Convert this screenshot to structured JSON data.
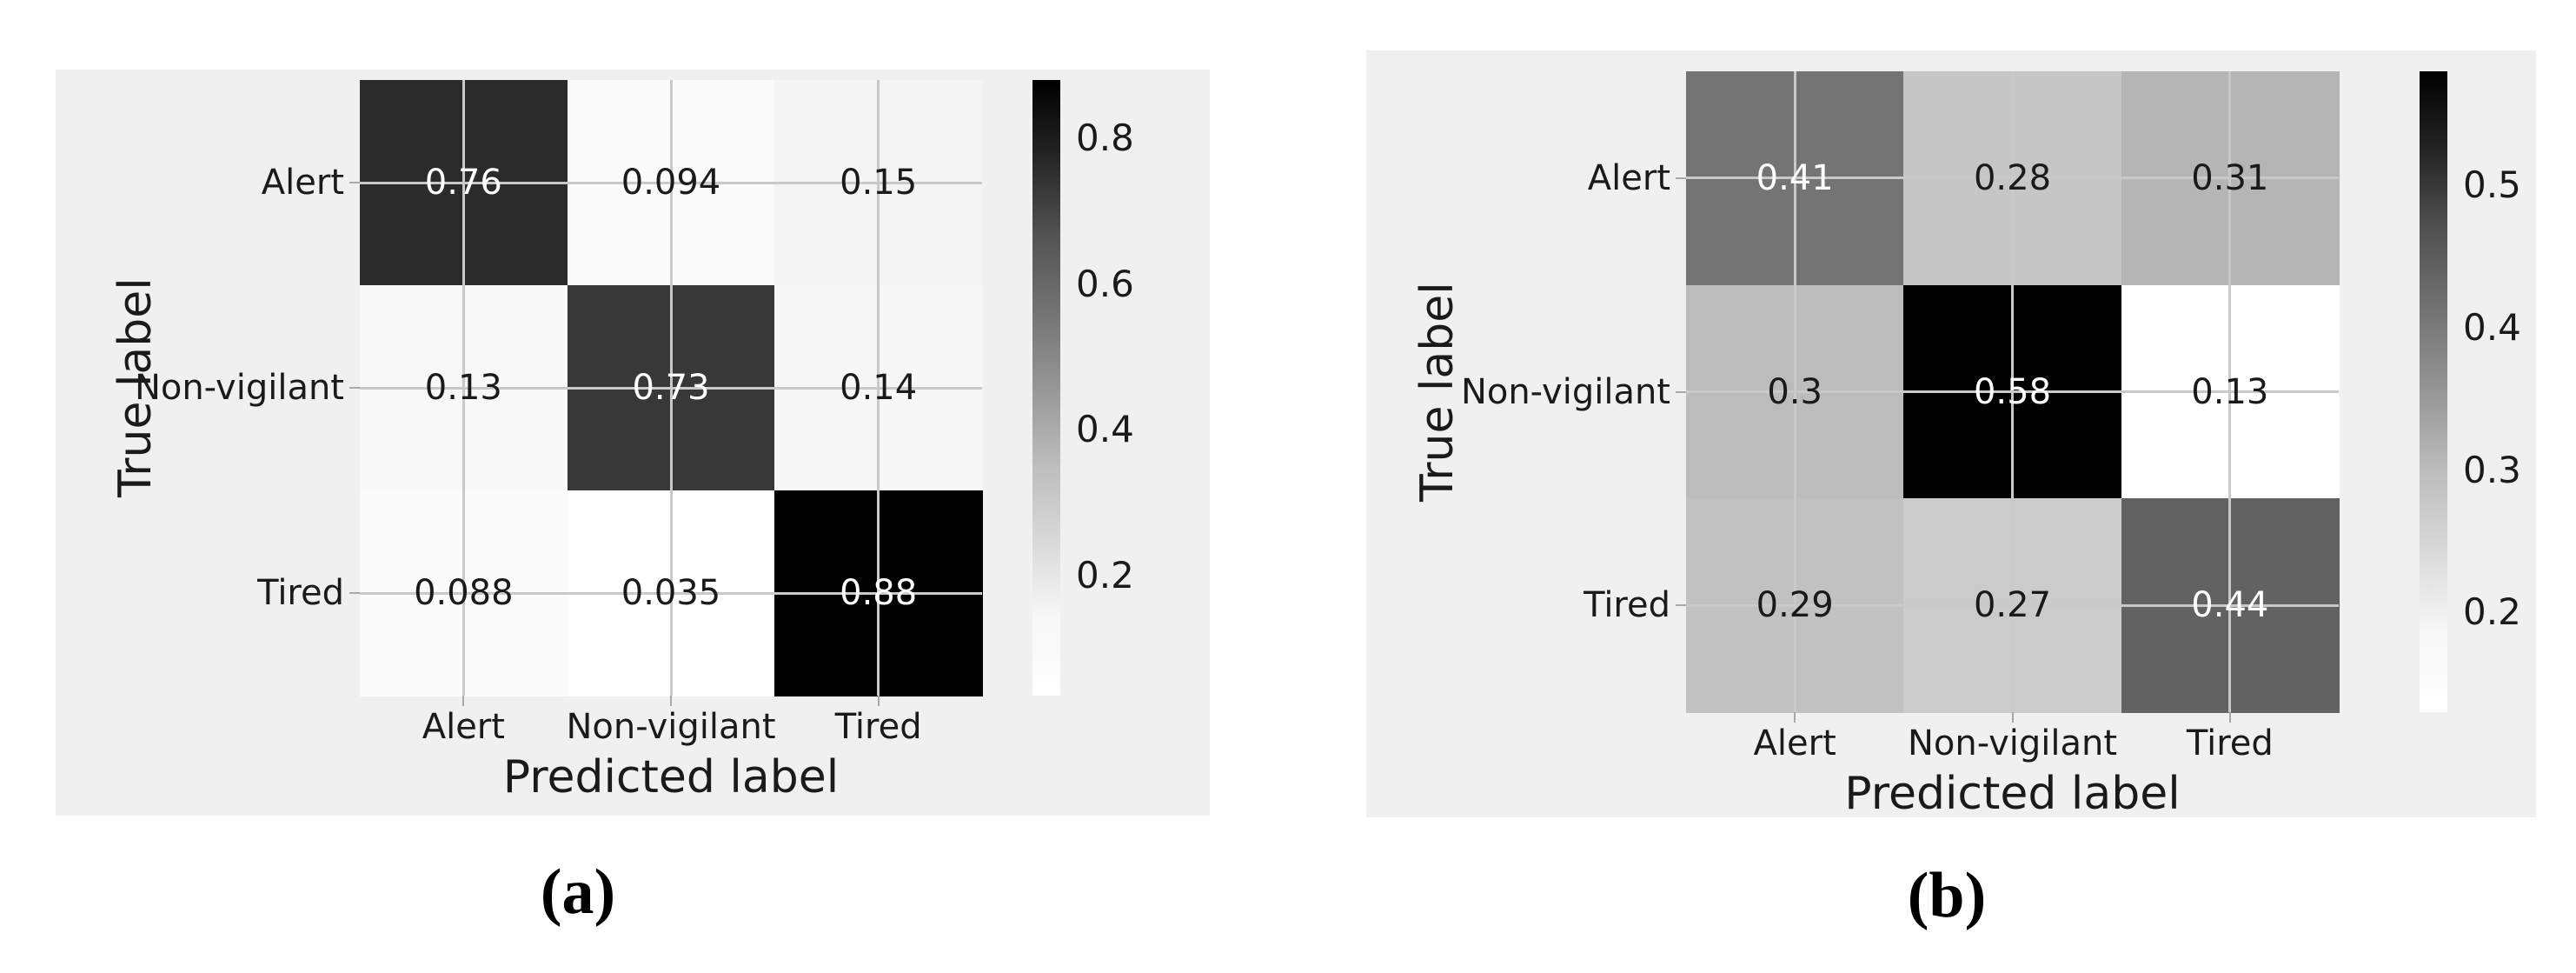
{
  "figure": {
    "description": "Two grayscale confusion matrix heatmaps",
    "panel_background": "#f0f0f0",
    "page_background": "#ffffff",
    "captions": {
      "a": "(a)",
      "b": "(b)"
    }
  },
  "chart_data": [
    {
      "id": "a",
      "type": "heatmap",
      "title": "",
      "xlabel": "Predicted label",
      "ylabel": "True label",
      "x_categories": [
        "Alert",
        "Non-vigilant",
        "Tired"
      ],
      "y_categories": [
        "Alert",
        "Non-vigilant",
        "Tired"
      ],
      "values": [
        [
          0.76,
          0.094,
          0.15
        ],
        [
          0.13,
          0.73,
          0.14
        ],
        [
          0.088,
          0.035,
          0.88
        ]
      ],
      "value_labels": [
        [
          "0.76",
          "0.094",
          "0.15"
        ],
        [
          "0.13",
          "0.73",
          "0.14"
        ],
        [
          "0.088",
          "0.035",
          "0.88"
        ]
      ],
      "vmin": 0.035,
      "vmax": 0.88,
      "colormap": "Greys",
      "grid": true,
      "legend_position": "right-colorbar",
      "colorbar_ticks": [
        "0.8",
        "0.6",
        "0.4",
        "0.2"
      ],
      "colorbar_tick_values": [
        0.8,
        0.6,
        0.4,
        0.2
      ],
      "caption": "(a)"
    },
    {
      "id": "b",
      "type": "heatmap",
      "title": "",
      "xlabel": "Predicted label",
      "ylabel": "True label",
      "x_categories": [
        "Alert",
        "Non-vigilant",
        "Tired"
      ],
      "y_categories": [
        "Alert",
        "Non-vigilant",
        "Tired"
      ],
      "values": [
        [
          0.41,
          0.28,
          0.31
        ],
        [
          0.3,
          0.58,
          0.13
        ],
        [
          0.29,
          0.27,
          0.44
        ]
      ],
      "value_labels": [
        [
          "0.41",
          "0.28",
          "0.31"
        ],
        [
          "0.3",
          "0.58",
          "0.13"
        ],
        [
          "0.29",
          "0.27",
          "0.44"
        ]
      ],
      "vmin": 0.13,
      "vmax": 0.58,
      "colormap": "Greys",
      "grid": true,
      "legend_position": "right-colorbar",
      "colorbar_ticks": [
        "0.5",
        "0.4",
        "0.3",
        "0.2"
      ],
      "colorbar_tick_values": [
        0.5,
        0.4,
        0.3,
        0.2
      ],
      "caption": "(b)"
    }
  ]
}
